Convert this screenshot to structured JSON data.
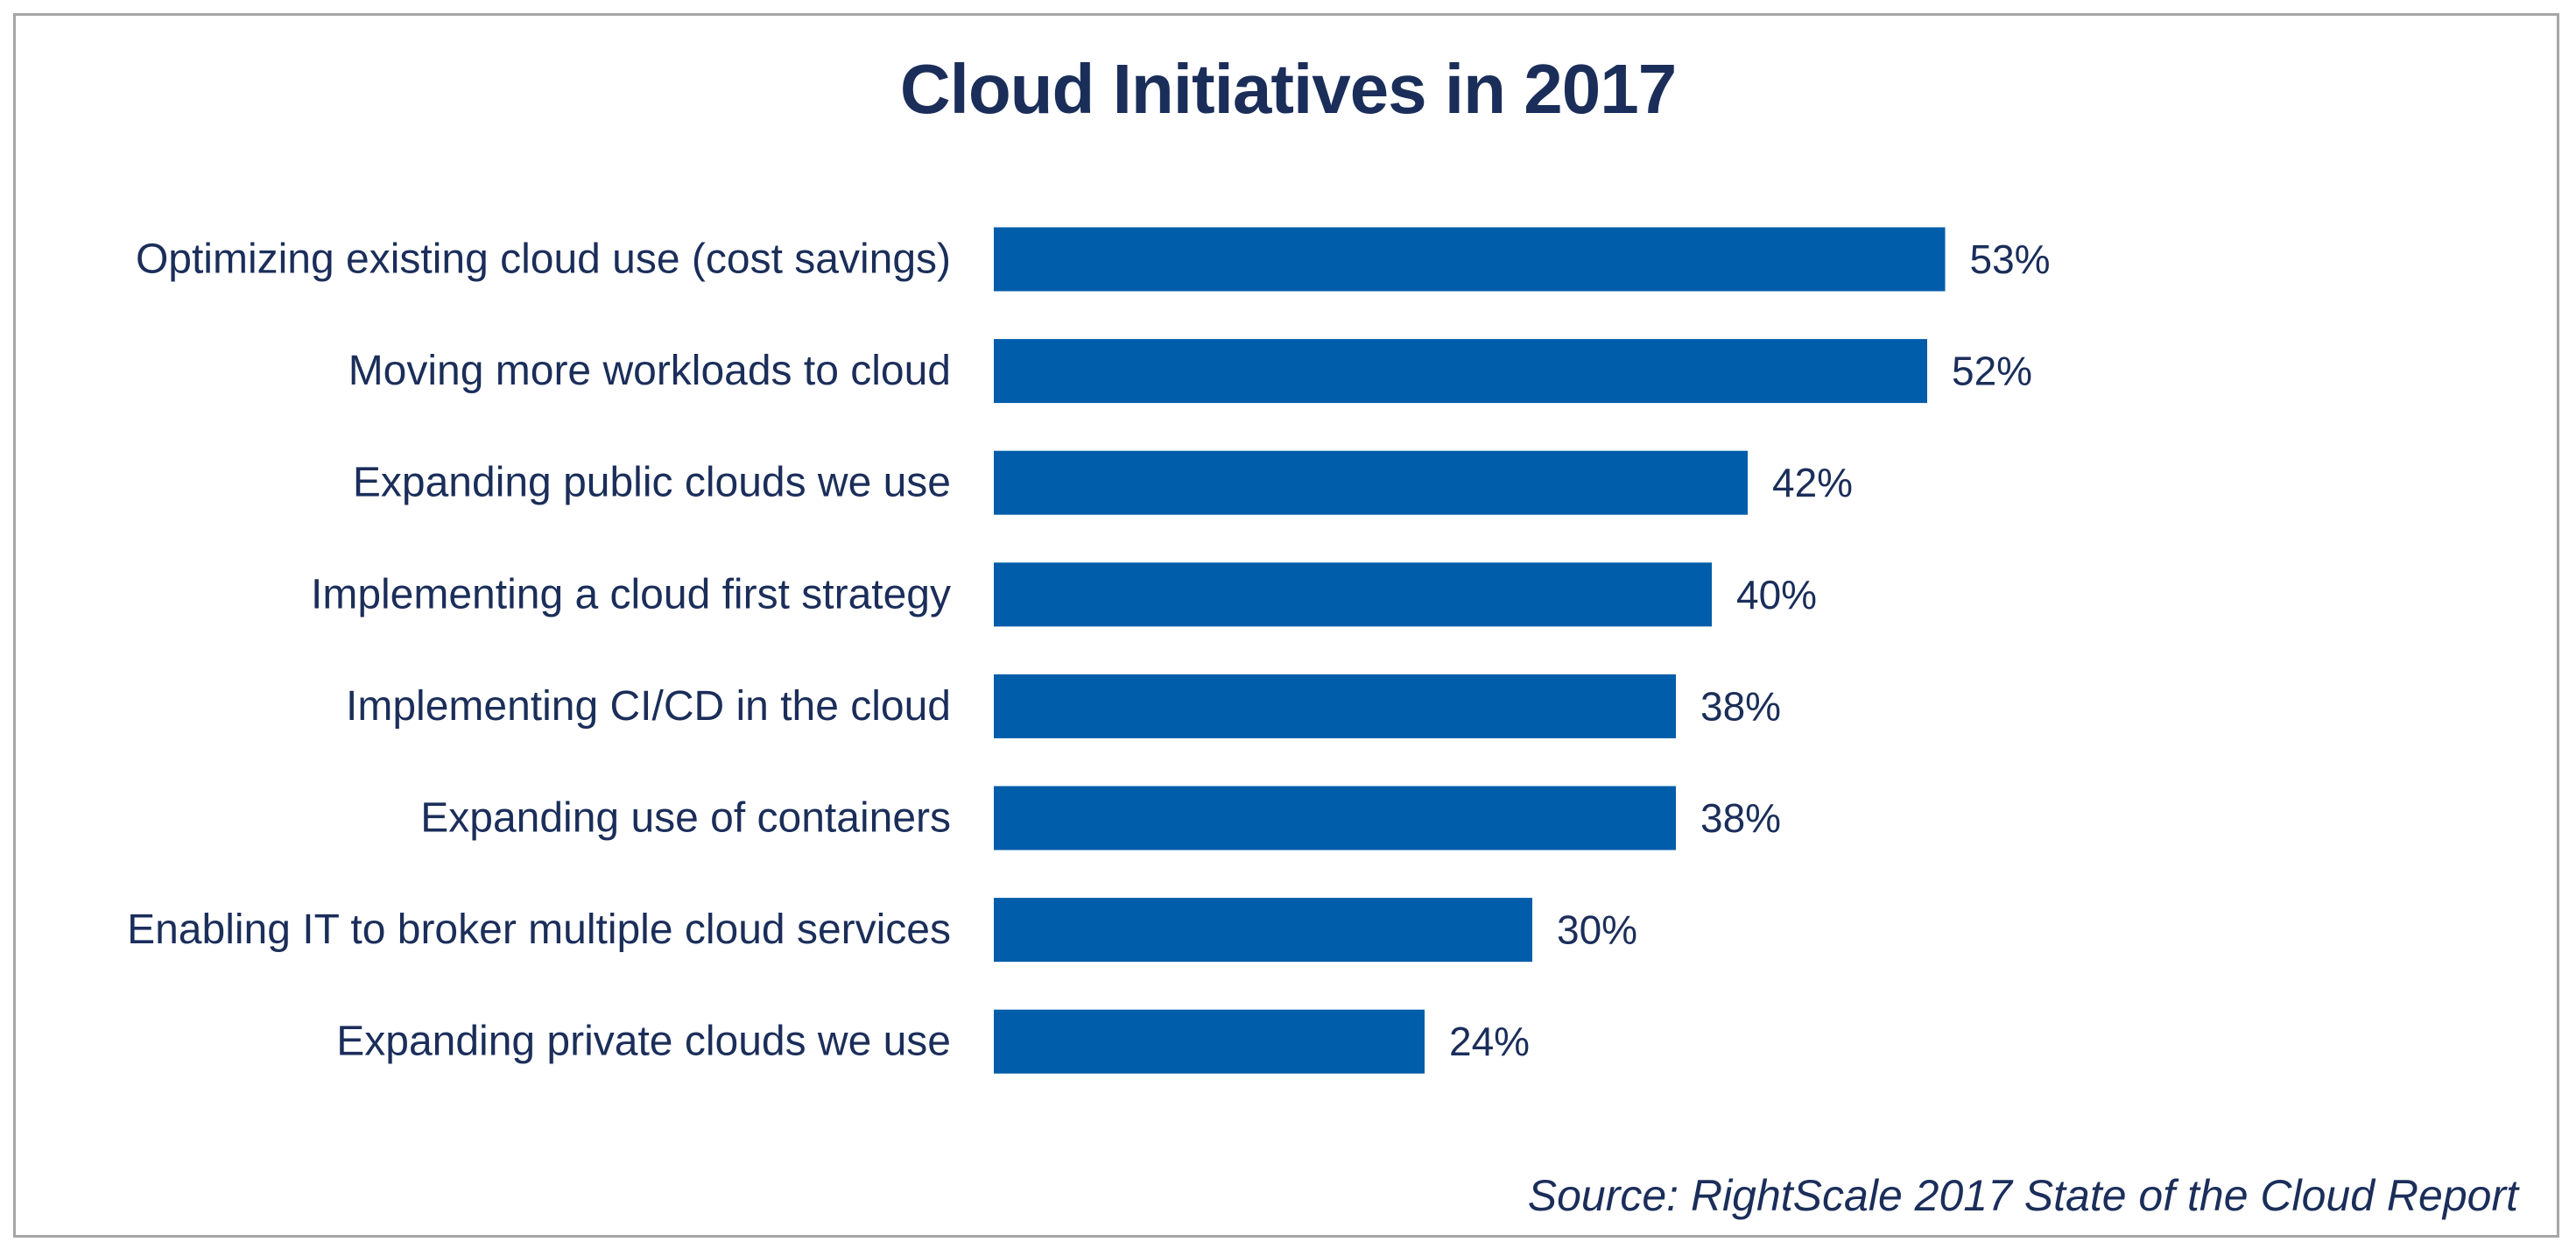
{
  "chart_data": {
    "type": "bar",
    "orientation": "horizontal",
    "title": "Cloud Initiatives in 2017",
    "categories": [
      "Optimizing existing cloud use (cost savings)",
      "Moving more workloads to cloud",
      "Expanding public clouds we use",
      "Implementing a cloud first strategy",
      "Implementing CI/CD in the cloud",
      "Expanding use of containers",
      "Enabling IT to broker multiple cloud services",
      "Expanding private clouds we use"
    ],
    "values": [
      53,
      52,
      42,
      40,
      38,
      38,
      30,
      24
    ],
    "value_labels": [
      "53%",
      "52%",
      "42%",
      "40%",
      "38%",
      "38%",
      "30%",
      "24%"
    ],
    "unit": "%",
    "xlabel": "",
    "ylabel": "",
    "xlim": [
      0,
      53
    ],
    "grid": false,
    "legend": "none",
    "bar_color": "#005daa",
    "text_color": "#1b2e5a",
    "source": "Source: RightScale 2017 State of the Cloud Report"
  }
}
